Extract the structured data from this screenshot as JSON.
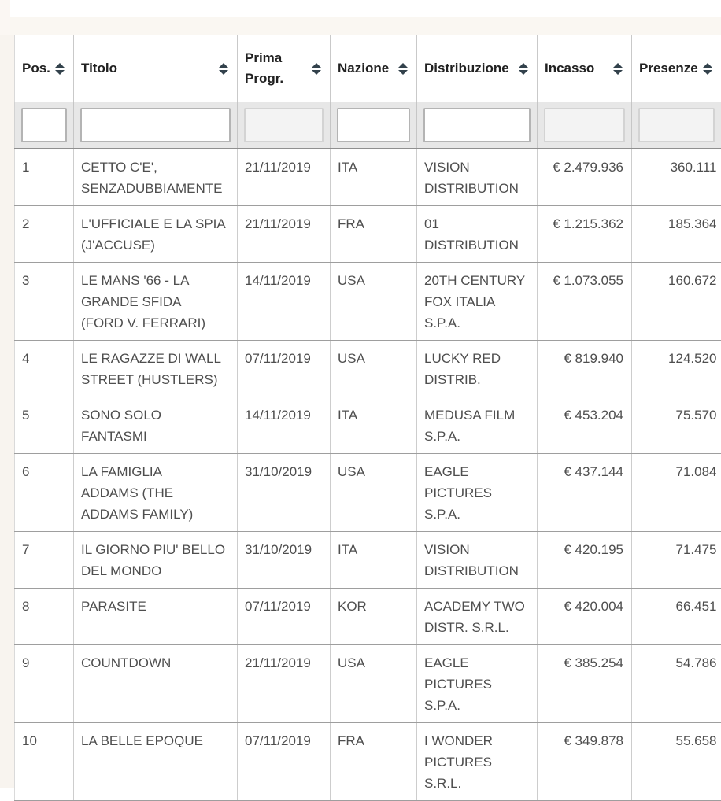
{
  "colors": {
    "header_text": "#212121",
    "cell_text": "#4e4e4e",
    "filter_row_background": "#e7e7e7",
    "row_divider": "#9e9e9e",
    "sort_icon": "#33424c"
  },
  "icons": {
    "sort": "up-down-triangles"
  },
  "table": {
    "columns": [
      {
        "label": "Pos.",
        "sortable": true,
        "filter_enabled": true,
        "filter_value": ""
      },
      {
        "label": "Titolo",
        "sortable": true,
        "filter_enabled": true,
        "filter_value": ""
      },
      {
        "label": "Prima Progr.",
        "sortable": true,
        "filter_enabled": false,
        "filter_value": ""
      },
      {
        "label": "Nazione",
        "sortable": true,
        "filter_enabled": true,
        "filter_value": ""
      },
      {
        "label": "Distribuzione",
        "sortable": true,
        "filter_enabled": true,
        "filter_value": ""
      },
      {
        "label": "Incasso",
        "sortable": true,
        "filter_enabled": false,
        "filter_value": ""
      },
      {
        "label": "Presenze",
        "sortable": true,
        "filter_enabled": false,
        "filter_value": ""
      }
    ],
    "rows": [
      [
        "1",
        "CETTO C'E',\nSENZADUBBIAMENTE",
        "21/11/2019",
        "ITA",
        "VISION\nDISTRIBUTION",
        "€ 2.479.936",
        "360.111"
      ],
      [
        "2",
        "L'UFFICIALE E LA SPIA\n(J'ACCUSE)",
        "21/11/2019",
        "FRA",
        "01\nDISTRIBUTION",
        "€ 1.215.362",
        "185.364"
      ],
      [
        "3",
        "LE MANS '66 - LA\nGRANDE SFIDA\n(FORD V. FERRARI)",
        "14/11/2019",
        "USA",
        "20TH CENTURY\nFOX ITALIA\nS.P.A.",
        "€ 1.073.055",
        "160.672"
      ],
      [
        "4",
        "LE RAGAZZE DI WALL\nSTREET (HUSTLERS)",
        "07/11/2019",
        "USA",
        "LUCKY RED\nDISTRIB.",
        "€ 819.940",
        "124.520"
      ],
      [
        "5",
        "SONO SOLO\nFANTASMI",
        "14/11/2019",
        "ITA",
        "MEDUSA FILM\nS.P.A.",
        "€ 453.204",
        "75.570"
      ],
      [
        "6",
        "LA FAMIGLIA\nADDAMS (THE\nADDAMS FAMILY)",
        "31/10/2019",
        "USA",
        "EAGLE\nPICTURES\nS.P.A.",
        "€ 437.144",
        "71.084"
      ],
      [
        "7",
        "IL GIORNO PIU' BELLO\nDEL MONDO",
        "31/10/2019",
        "ITA",
        "VISION\nDISTRIBUTION",
        "€ 420.195",
        "71.475"
      ],
      [
        "8",
        "PARASITE",
        "07/11/2019",
        "KOR",
        "ACADEMY TWO\nDISTR. S.R.L.",
        "€ 420.004",
        "66.451"
      ],
      [
        "9",
        "COUNTDOWN",
        "21/11/2019",
        "USA",
        "EAGLE\nPICTURES\nS.P.A.",
        "€ 385.254",
        "54.786"
      ],
      [
        "10",
        "LA BELLE EPOQUE",
        "07/11/2019",
        "FRA",
        "I WONDER\nPICTURES\nS.R.L.",
        "€ 349.878",
        "55.658"
      ]
    ]
  }
}
